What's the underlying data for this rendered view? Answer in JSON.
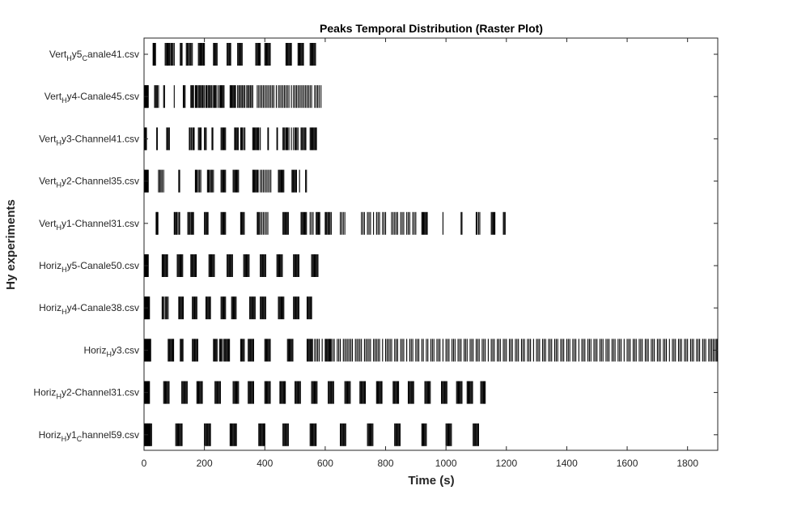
{
  "chart_data": {
    "type": "raster",
    "title": "Peaks Temporal Distribution (Raster Plot)",
    "xlabel": "Time (s)",
    "ylabel": "Hy experiments",
    "xlim": [
      0,
      1900
    ],
    "xticks": [
      0,
      200,
      400,
      600,
      800,
      1000,
      1200,
      1400,
      1600,
      1800
    ],
    "grid": false,
    "colors": {
      "spike": "#000000",
      "axis": "#262626"
    },
    "series": [
      {
        "label": {
          "pre": "Vert",
          "sub1": "H",
          "mid": "y5",
          "sub2": "C",
          "post": "anale41.csv"
        },
        "spikes": [
          30,
          32,
          34,
          36,
          38,
          70,
          73,
          76,
          78,
          80,
          83,
          86,
          90,
          93,
          96,
          100,
          120,
          123,
          126,
          140,
          143,
          146,
          150,
          153,
          156,
          160,
          180,
          183,
          186,
          189,
          192,
          195,
          197,
          200,
          230,
          233,
          236,
          239,
          242,
          275,
          278,
          281,
          284,
          287,
          310,
          313,
          316,
          319,
          322,
          325,
          370,
          373,
          376,
          379,
          382,
          385,
          400,
          403,
          406,
          409,
          412,
          415,
          418,
          470,
          473,
          476,
          479,
          482,
          485,
          488,
          510,
          513,
          516,
          519,
          522,
          525,
          528,
          550,
          553,
          556,
          559,
          562,
          565,
          568
        ]
      },
      {
        "label": {
          "pre": "Vert",
          "sub1": "H",
          "mid": "y4-Canale45.csv"
        },
        "spikes": [
          2,
          4,
          6,
          8,
          10,
          12,
          14,
          35,
          38,
          41,
          44,
          48,
          65,
          68,
          100,
          130,
          133,
          136,
          155,
          158,
          161,
          164,
          170,
          173,
          176,
          180,
          183,
          186,
          190,
          193,
          196,
          200,
          205,
          208,
          212,
          215,
          218,
          222,
          225,
          230,
          233,
          236,
          239,
          245,
          250,
          253,
          256,
          259,
          262,
          265,
          285,
          288,
          291,
          294,
          297,
          300,
          303,
          310,
          314,
          318,
          322,
          326,
          330,
          334,
          340,
          344,
          348,
          352,
          356,
          360,
          375,
          380,
          385,
          390,
          395,
          400,
          405,
          410,
          415,
          420,
          425,
          430,
          438,
          445,
          450,
          455,
          460,
          465,
          470,
          475,
          480,
          488,
          495,
          500,
          505,
          510,
          515,
          520,
          525,
          530,
          535,
          540,
          545,
          550,
          555,
          565,
          570,
          575,
          580,
          586
        ]
      },
      {
        "label": {
          "pre": "Vert",
          "sub1": "H",
          "mid": "y3-Channel41.csv"
        },
        "spikes": [
          2,
          4,
          6,
          8,
          42,
          44,
          75,
          78,
          81,
          84,
          150,
          153,
          157,
          161,
          164,
          166,
          180,
          183,
          186,
          189,
          200,
          203,
          206,
          225,
          228,
          255,
          258,
          261,
          264,
          267,
          270,
          300,
          303,
          306,
          309,
          312,
          320,
          323,
          326,
          330,
          334,
          360,
          363,
          366,
          369,
          372,
          375,
          378,
          380,
          385,
          410,
          412,
          440,
          442,
          460,
          463,
          466,
          470,
          473,
          476,
          480,
          488,
          495,
          500,
          503,
          506,
          510,
          520,
          523,
          526,
          530,
          533,
          536,
          550,
          553,
          556,
          559,
          562,
          565,
          568,
          571
        ]
      },
      {
        "label": {
          "pre": "Vert",
          "sub1": "H",
          "mid": "y2-Channel35.csv"
        },
        "spikes": [
          2,
          4,
          6,
          8,
          10,
          12,
          14,
          48,
          52,
          56,
          60,
          65,
          115,
          118,
          170,
          173,
          176,
          180,
          184,
          188,
          210,
          213,
          216,
          220,
          223,
          226,
          230,
          255,
          258,
          261,
          264,
          267,
          270,
          295,
          298,
          301,
          304,
          307,
          310,
          313,
          360,
          363,
          366,
          369,
          372,
          375,
          378,
          385,
          390,
          395,
          400,
          405,
          410,
          415,
          420,
          445,
          448,
          451,
          454,
          457,
          460,
          463,
          490,
          493,
          496,
          499,
          502,
          505,
          515,
          535,
          538
        ]
      },
      {
        "label": {
          "pre": "Vert",
          "sub1": "H",
          "mid": "y1-Channel31.csv"
        },
        "spikes": [
          40,
          42,
          44,
          46,
          100,
          102,
          105,
          108,
          110,
          115,
          118,
          145,
          148,
          151,
          155,
          158,
          161,
          164,
          200,
          203,
          206,
          209,
          212,
          255,
          258,
          261,
          264,
          267,
          270,
          320,
          323,
          326,
          329,
          332,
          375,
          378,
          381,
          385,
          390,
          395,
          400,
          405,
          410,
          460,
          463,
          466,
          469,
          472,
          475,
          478,
          520,
          523,
          526,
          529,
          532,
          535,
          538,
          550,
          555,
          560,
          570,
          573,
          576,
          579,
          582,
          600,
          603,
          606,
          610,
          613,
          616,
          620,
          650,
          655,
          660,
          665,
          720,
          725,
          730,
          740,
          745,
          750,
          760,
          770,
          775,
          780,
          790,
          795,
          800,
          820,
          825,
          830,
          835,
          840,
          850,
          855,
          860,
          870,
          875,
          880,
          890,
          895,
          900,
          920,
          923,
          926,
          929,
          932,
          935,
          938,
          990,
          1050,
          1053,
          1100,
          1103,
          1108,
          1112,
          1150,
          1153,
          1156,
          1159,
          1162,
          1190,
          1193,
          1196
        ]
      },
      {
        "label": {
          "pre": "Horiz",
          "sub1": "H",
          "mid": "y5-Canale50.csv"
        },
        "spikes": [
          2,
          4,
          6,
          8,
          10,
          12,
          14,
          60,
          63,
          66,
          69,
          72,
          75,
          78,
          110,
          113,
          116,
          119,
          122,
          125,
          128,
          155,
          158,
          161,
          164,
          167,
          170,
          173,
          215,
          218,
          221,
          224,
          227,
          230,
          233,
          275,
          278,
          281,
          284,
          287,
          290,
          293,
          330,
          333,
          336,
          339,
          342,
          345,
          348,
          385,
          388,
          391,
          394,
          397,
          400,
          403,
          440,
          443,
          446,
          449,
          452,
          455,
          458,
          495,
          498,
          501,
          504,
          507,
          510,
          513,
          555,
          558,
          561,
          564,
          567,
          570,
          573,
          576
        ]
      },
      {
        "label": {
          "pre": "Horiz",
          "sub1": "H",
          "mid": "y4-Canale38.csv"
        },
        "spikes": [
          2,
          4,
          6,
          8,
          10,
          12,
          14,
          16,
          18,
          60,
          62,
          65,
          70,
          73,
          76,
          80,
          115,
          118,
          121,
          124,
          127,
          130,
          160,
          163,
          166,
          169,
          172,
          175,
          205,
          208,
          211,
          214,
          217,
          220,
          255,
          258,
          261,
          264,
          267,
          270,
          290,
          293,
          296,
          299,
          302,
          305,
          350,
          353,
          356,
          359,
          362,
          365,
          368,
          385,
          388,
          391,
          394,
          397,
          400,
          403,
          445,
          448,
          451,
          454,
          457,
          460,
          463,
          495,
          498,
          501,
          504,
          507,
          510,
          513,
          540,
          543,
          546,
          549,
          552,
          555
        ]
      },
      {
        "label": {
          "pre": "Horiz",
          "sub1": "H",
          "mid": "y3.csv"
        },
        "spikes": [
          2,
          4,
          6,
          8,
          10,
          12,
          14,
          16,
          18,
          20,
          22,
          80,
          83,
          86,
          89,
          92,
          95,
          98,
          120,
          123,
          126,
          129,
          160,
          163,
          166,
          169,
          172,
          175,
          178,
          230,
          233,
          236,
          239,
          242,
          250,
          253,
          256,
          260,
          265,
          268,
          271,
          274,
          277,
          280,
          283,
          320,
          323,
          326,
          329,
          332,
          345,
          348,
          351,
          354,
          357,
          360,
          363,
          400,
          403,
          406,
          409,
          412,
          415,
          418,
          475,
          478,
          481,
          484,
          487,
          490,
          493,
          540,
          543,
          546,
          549,
          552,
          555,
          558,
          565,
          570,
          575,
          580,
          590,
          600,
          603,
          606,
          609,
          612,
          615,
          618,
          620,
          625,
          630,
          640,
          645,
          650,
          660,
          665,
          670,
          675,
          680,
          685,
          690,
          700,
          705,
          710,
          715,
          720,
          730,
          735,
          740,
          745,
          750,
          760,
          765,
          770,
          775,
          780,
          790,
          800,
          805,
          810,
          815,
          820,
          830,
          835,
          840,
          850,
          855,
          860,
          870,
          880,
          885,
          890,
          900,
          905,
          910,
          920,
          925,
          935,
          940,
          950,
          955,
          960,
          970,
          975,
          980,
          990,
          1000,
          1005,
          1010,
          1020,
          1025,
          1030,
          1040,
          1045,
          1050,
          1060,
          1065,
          1070,
          1080,
          1085,
          1090,
          1100,
          1105,
          1110,
          1120,
          1125,
          1130,
          1140,
          1150,
          1155,
          1160,
          1170,
          1175,
          1180,
          1190,
          1195,
          1200,
          1210,
          1215,
          1220,
          1230,
          1235,
          1240,
          1250,
          1255,
          1260,
          1270,
          1275,
          1280,
          1290,
          1300,
          1305,
          1310,
          1320,
          1325,
          1330,
          1340,
          1345,
          1350,
          1360,
          1365,
          1370,
          1380,
          1385,
          1390,
          1400,
          1405,
          1410,
          1420,
          1425,
          1430,
          1440,
          1450,
          1455,
          1460,
          1470,
          1475,
          1480,
          1490,
          1495,
          1500,
          1510,
          1515,
          1520,
          1530,
          1535,
          1540,
          1550,
          1555,
          1560,
          1570,
          1575,
          1580,
          1590,
          1600,
          1605,
          1610,
          1620,
          1625,
          1630,
          1640,
          1645,
          1650,
          1660,
          1665,
          1670,
          1680,
          1685,
          1690,
          1700,
          1705,
          1710,
          1720,
          1725,
          1730,
          1740,
          1750,
          1755,
          1760,
          1770,
          1775,
          1780,
          1790,
          1795,
          1800,
          1810,
          1815,
          1820,
          1830,
          1835,
          1840,
          1850,
          1855,
          1860,
          1870,
          1875,
          1880,
          1885,
          1890,
          1895,
          1898
        ]
      },
      {
        "label": {
          "pre": "Horiz",
          "sub1": "H",
          "mid": "y2-Channel31.csv"
        },
        "spikes": [
          2,
          4,
          6,
          8,
          10,
          12,
          14,
          16,
          18,
          65,
          68,
          71,
          74,
          77,
          80,
          83,
          125,
          128,
          131,
          134,
          137,
          140,
          143,
          175,
          178,
          181,
          184,
          187,
          190,
          193,
          235,
          238,
          241,
          244,
          247,
          250,
          253,
          295,
          298,
          301,
          304,
          307,
          310,
          313,
          345,
          348,
          351,
          354,
          357,
          360,
          363,
          400,
          403,
          406,
          409,
          412,
          415,
          418,
          450,
          453,
          456,
          459,
          462,
          465,
          468,
          500,
          503,
          506,
          509,
          512,
          515,
          518,
          555,
          558,
          561,
          564,
          567,
          570,
          573,
          610,
          613,
          616,
          619,
          622,
          625,
          628,
          665,
          668,
          671,
          674,
          677,
          680,
          683,
          715,
          718,
          721,
          724,
          727,
          730,
          733,
          770,
          773,
          776,
          779,
          782,
          785,
          788,
          825,
          828,
          831,
          834,
          837,
          840,
          843,
          875,
          878,
          881,
          884,
          887,
          890,
          893,
          930,
          933,
          936,
          939,
          942,
          945,
          948,
          985,
          988,
          991,
          994,
          997,
          1000,
          1003,
          1035,
          1038,
          1041,
          1044,
          1047,
          1050,
          1053,
          1070,
          1073,
          1076,
          1079,
          1082,
          1085,
          1088,
          1115,
          1118,
          1121,
          1124,
          1127,
          1130
        ]
      },
      {
        "label": {
          "pre": "Horiz",
          "sub1": "H",
          "mid": "y1",
          "sub2": "C",
          "post": "hannel59.csv"
        },
        "spikes": [
          2,
          4,
          6,
          8,
          10,
          12,
          14,
          16,
          18,
          20,
          22,
          25,
          105,
          108,
          111,
          114,
          117,
          120,
          123,
          126,
          200,
          203,
          206,
          209,
          212,
          215,
          218,
          220,
          285,
          288,
          291,
          294,
          297,
          300,
          303,
          306,
          380,
          383,
          386,
          389,
          392,
          395,
          398,
          400,
          460,
          463,
          466,
          469,
          472,
          475,
          478,
          550,
          553,
          556,
          559,
          562,
          565,
          568,
          570,
          650,
          653,
          656,
          659,
          662,
          665,
          668,
          740,
          743,
          746,
          749,
          752,
          755,
          758,
          830,
          833,
          836,
          839,
          842,
          845,
          848,
          920,
          923,
          926,
          929,
          932,
          935,
          1000,
          1003,
          1006,
          1009,
          1012,
          1015,
          1018,
          1090,
          1093,
          1096,
          1099,
          1102,
          1105,
          1108
        ]
      }
    ]
  }
}
